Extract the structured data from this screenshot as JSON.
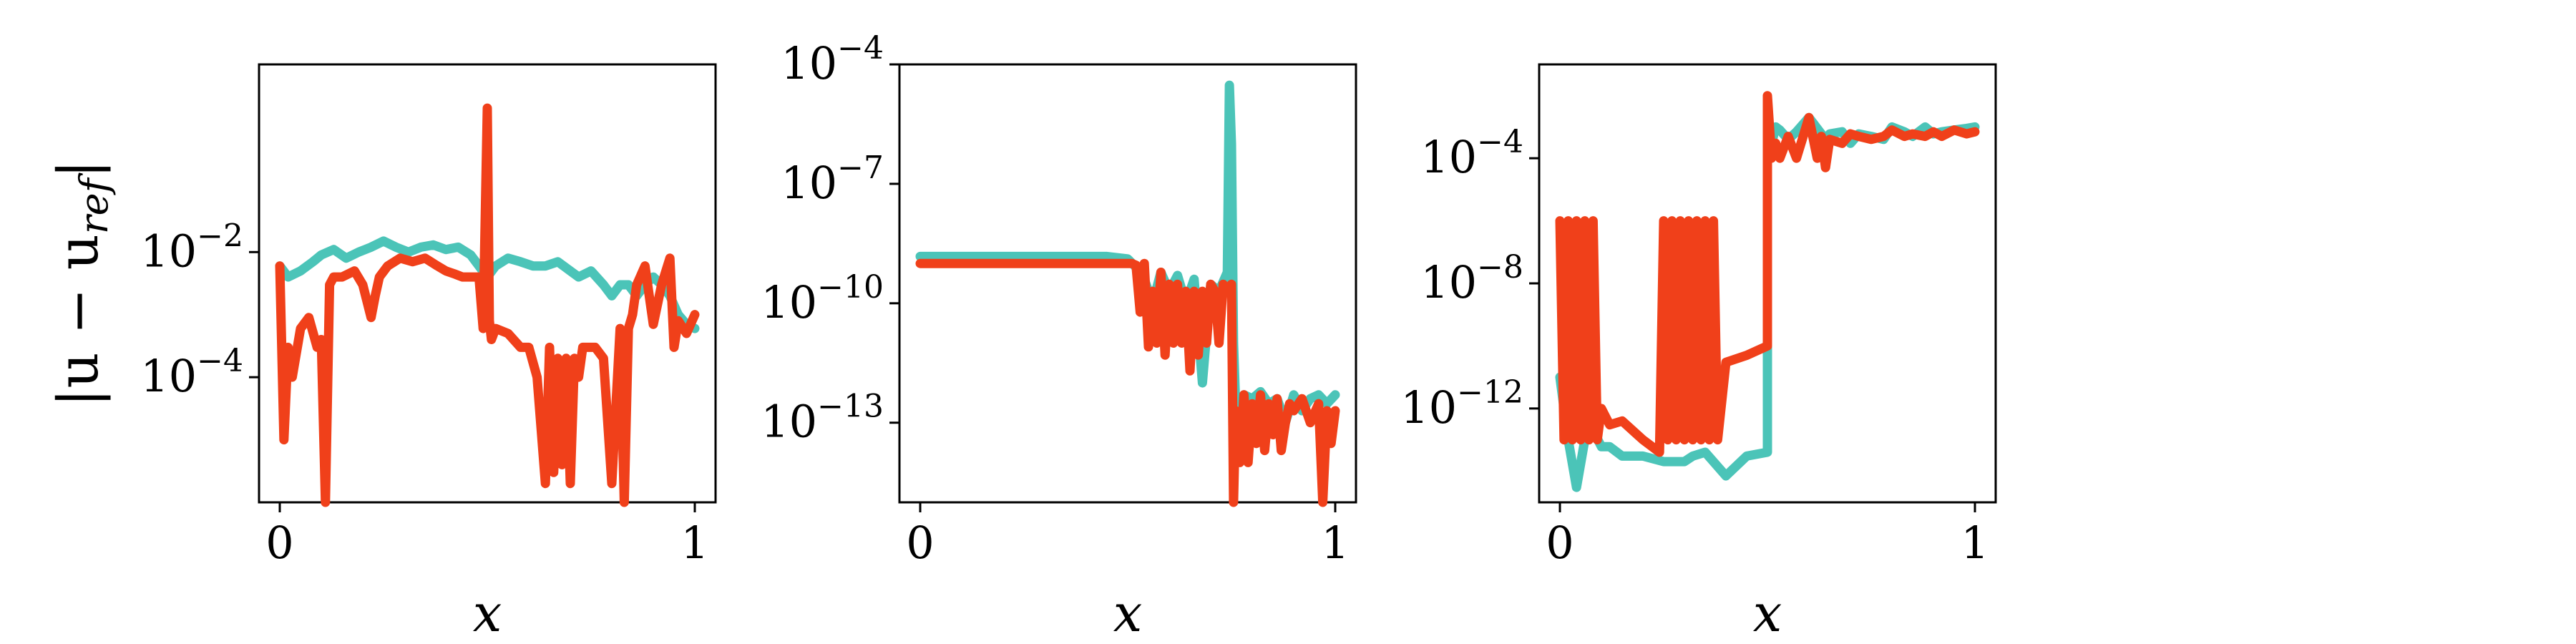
{
  "colors": {
    "series_a": "#4bc4b8",
    "series_b": "#f0401a",
    "axes": "#000000"
  },
  "chart_data": [
    {
      "type": "line",
      "log_y": true,
      "xlim": [
        -0.05,
        1.05
      ],
      "ylim": [
        1e-06,
        10
      ],
      "xticks": [
        {
          "value": 0,
          "label": "0"
        },
        {
          "value": 1,
          "label": "1"
        }
      ],
      "yticks": [
        {
          "value": 0.01,
          "base": "10",
          "exp": "−2"
        },
        {
          "value": 0.0001,
          "base": "10",
          "exp": "−4"
        }
      ],
      "xlabel": "x",
      "ylabel": "|u − u",
      "ylabel_sub": "ref",
      "ylabel_end": "|",
      "series": [
        {
          "color_key": "series_a",
          "x": [
            0,
            0.02,
            0.05,
            0.08,
            0.1,
            0.13,
            0.16,
            0.19,
            0.22,
            0.25,
            0.28,
            0.31,
            0.34,
            0.37,
            0.4,
            0.43,
            0.46,
            0.48,
            0.5,
            0.52,
            0.55,
            0.58,
            0.61,
            0.64,
            0.67,
            0.7,
            0.72,
            0.75,
            0.78,
            0.8,
            0.82,
            0.84,
            0.86,
            0.88,
            0.9,
            0.92,
            0.94,
            0.96,
            0.98,
            1.0
          ],
          "y": [
            0.006,
            0.004,
            0.005,
            0.007,
            0.009,
            0.011,
            0.008,
            0.01,
            0.012,
            0.015,
            0.012,
            0.01,
            0.012,
            0.013,
            0.011,
            0.012,
            0.009,
            0.006,
            0.004,
            0.006,
            0.008,
            0.007,
            0.006,
            0.006,
            0.007,
            0.005,
            0.004,
            0.005,
            0.003,
            0.002,
            0.003,
            0.003,
            0.002,
            0.003,
            0.004,
            0.003,
            0.002,
            0.001,
            0.0007,
            0.0006
          ]
        },
        {
          "color_key": "series_b",
          "x": [
            0,
            0.01,
            0.02,
            0.03,
            0.05,
            0.07,
            0.09,
            0.1,
            0.11,
            0.12,
            0.13,
            0.15,
            0.18,
            0.2,
            0.22,
            0.23,
            0.24,
            0.26,
            0.29,
            0.32,
            0.35,
            0.38,
            0.4,
            0.42,
            0.44,
            0.46,
            0.48,
            0.49,
            0.5,
            0.505,
            0.51,
            0.52,
            0.55,
            0.58,
            0.6,
            0.62,
            0.64,
            0.65,
            0.66,
            0.67,
            0.68,
            0.69,
            0.7,
            0.71,
            0.72,
            0.73,
            0.74,
            0.76,
            0.78,
            0.8,
            0.82,
            0.83,
            0.84,
            0.85,
            0.86,
            0.88,
            0.9,
            0.92,
            0.94,
            0.95,
            0.96,
            0.98,
            1.0
          ],
          "y": [
            0.006,
            1e-05,
            0.0003,
            0.0001,
            0.0006,
            0.0009,
            0.0003,
            0.0004,
            1e-06,
            0.003,
            0.004,
            0.004,
            0.005,
            0.003,
            0.0009,
            0.002,
            0.004,
            0.006,
            0.008,
            0.007,
            0.008,
            0.006,
            0.005,
            0.0045,
            0.004,
            0.004,
            0.004,
            0.0006,
            2,
            0.0008,
            0.0004,
            0.0006,
            0.0005,
            0.0003,
            0.0003,
            0.0001,
            2e-06,
            0.0003,
            3e-06,
            0.0002,
            4e-06,
            0.0002,
            2e-06,
            0.0002,
            0.0001,
            0.0003,
            0.0003,
            0.0003,
            0.0002,
            2e-06,
            0.0006,
            1e-06,
            0.0006,
            0.001,
            0.003,
            0.006,
            0.0007,
            0.003,
            0.008,
            0.0003,
            0.0008,
            0.0005,
            0.001
          ]
        }
      ]
    },
    {
      "type": "line",
      "log_y": true,
      "xlim": [
        -0.05,
        1.05
      ],
      "ylim": [
        1e-15,
        0.0001
      ],
      "xticks": [
        {
          "value": 0,
          "label": "0"
        },
        {
          "value": 1,
          "label": "1"
        }
      ],
      "yticks": [
        {
          "value": 0.0001,
          "base": "10",
          "exp": "−4"
        },
        {
          "value": 1e-07,
          "base": "10",
          "exp": "−7"
        },
        {
          "value": 1e-10,
          "base": "10",
          "exp": "−10"
        },
        {
          "value": 1e-13,
          "base": "10",
          "exp": "−13"
        }
      ],
      "xlabel": "x",
      "series": [
        {
          "color_key": "series_a",
          "x": [
            0,
            0.1,
            0.2,
            0.3,
            0.4,
            0.45,
            0.5,
            0.52,
            0.54,
            0.56,
            0.58,
            0.6,
            0.62,
            0.64,
            0.66,
            0.68,
            0.7,
            0.72,
            0.74,
            0.745,
            0.75,
            0.755,
            0.76,
            0.78,
            0.8,
            0.82,
            0.84,
            0.86,
            0.88,
            0.9,
            0.92,
            0.94,
            0.96,
            0.98,
            1.0
          ],
          "y": [
            1.5e-09,
            1.5e-09,
            1.5e-09,
            1.5e-09,
            1.5e-09,
            1.5e-09,
            1.3e-09,
            8e-10,
            4e-10,
            1e-10,
            6e-10,
            2e-10,
            5e-10,
            1e-10,
            4e-10,
            1e-12,
            3e-10,
            2e-10,
            6e-10,
            3e-05,
            1e-06,
            1e-11,
            3e-13,
            5e-13,
            4e-13,
            6e-13,
            3e-13,
            4e-13,
            1e-13,
            5e-13,
            2e-13,
            4e-13,
            5e-13,
            3e-13,
            5e-13
          ]
        },
        {
          "color_key": "series_b",
          "x": [
            0,
            0.1,
            0.2,
            0.3,
            0.4,
            0.45,
            0.5,
            0.51,
            0.52,
            0.53,
            0.54,
            0.55,
            0.56,
            0.57,
            0.58,
            0.59,
            0.6,
            0.61,
            0.62,
            0.63,
            0.64,
            0.65,
            0.66,
            0.67,
            0.68,
            0.69,
            0.7,
            0.71,
            0.72,
            0.73,
            0.74,
            0.75,
            0.755,
            0.76,
            0.77,
            0.78,
            0.79,
            0.8,
            0.81,
            0.82,
            0.83,
            0.84,
            0.85,
            0.86,
            0.87,
            0.88,
            0.89,
            0.9,
            0.92,
            0.94,
            0.96,
            0.97,
            0.98,
            0.99,
            1.0
          ],
          "y": [
            1e-09,
            1e-09,
            1e-09,
            1e-09,
            1e-09,
            1e-09,
            1e-09,
            1e-09,
            9e-10,
            6e-11,
            1e-09,
            8e-12,
            2e-10,
            1e-11,
            6e-10,
            5e-12,
            3e-10,
            1e-11,
            3e-10,
            1e-11,
            2e-10,
            2e-12,
            2e-10,
            5e-12,
            2e-10,
            1e-11,
            3e-10,
            2e-10,
            1e-11,
            3e-10,
            2e-10,
            3e-10,
            1e-15,
            2e-13,
            1e-14,
            5e-13,
            1e-14,
            3e-13,
            3e-14,
            5e-13,
            2e-14,
            3e-13,
            5e-14,
            4e-13,
            2e-14,
            1e-13,
            3e-13,
            2e-13,
            4e-13,
            1e-13,
            3e-13,
            1e-15,
            2e-13,
            3e-14,
            2e-13
          ]
        }
      ]
    },
    {
      "type": "line",
      "log_y": true,
      "xlim": [
        -0.05,
        1.05
      ],
      "ylim": [
        1e-15,
        0.1
      ],
      "xticks": [
        {
          "value": 0,
          "label": "0"
        },
        {
          "value": 1,
          "label": "1"
        }
      ],
      "yticks": [
        {
          "value": 0.0001,
          "base": "10",
          "exp": "−4"
        },
        {
          "value": 1e-08,
          "base": "10",
          "exp": "−8"
        },
        {
          "value": 1e-12,
          "base": "10",
          "exp": "−12"
        }
      ],
      "xlabel": "x",
      "series": [
        {
          "color_key": "series_a",
          "x": [
            0,
            0.02,
            0.04,
            0.06,
            0.08,
            0.1,
            0.12,
            0.15,
            0.2,
            0.25,
            0.3,
            0.32,
            0.35,
            0.4,
            0.45,
            0.5,
            0.5,
            0.51,
            0.52,
            0.53,
            0.55,
            0.57,
            0.6,
            0.62,
            0.64,
            0.65,
            0.68,
            0.7,
            0.72,
            0.75,
            0.78,
            0.8,
            0.83,
            0.85,
            0.88,
            0.9,
            0.92,
            0.95,
            0.98,
            1.0
          ],
          "y": [
            1e-11,
            1e-13,
            3e-15,
            1e-13,
            2e-13,
            6e-14,
            6e-14,
            3e-14,
            3e-14,
            2e-14,
            2e-14,
            3e-14,
            4e-14,
            7e-15,
            3e-14,
            4e-14,
            0.001,
            0.0003,
            0.001,
            0.0008,
            0.0004,
            0.0007,
            0.002,
            0.0009,
            0.0004,
            0.0006,
            0.0007,
            0.0003,
            0.0006,
            0.0005,
            0.0004,
            0.001,
            0.0007,
            0.0005,
            0.001,
            0.0006,
            0.0007,
            0.0008,
            0.0009,
            0.001
          ]
        },
        {
          "color_key": "series_b",
          "x": [
            0,
            0.01,
            0.02,
            0.03,
            0.04,
            0.05,
            0.06,
            0.07,
            0.08,
            0.09,
            0.1,
            0.12,
            0.15,
            0.2,
            0.24,
            0.25,
            0.26,
            0.27,
            0.28,
            0.29,
            0.3,
            0.31,
            0.32,
            0.33,
            0.34,
            0.35,
            0.36,
            0.37,
            0.38,
            0.4,
            0.45,
            0.5,
            0.5,
            0.51,
            0.52,
            0.53,
            0.55,
            0.57,
            0.6,
            0.62,
            0.63,
            0.64,
            0.65,
            0.68,
            0.7,
            0.72,
            0.75,
            0.78,
            0.8,
            0.83,
            0.85,
            0.88,
            0.9,
            0.92,
            0.95,
            0.98,
            1.0
          ],
          "y": [
            1e-06,
            1e-13,
            1e-06,
            1e-13,
            1e-06,
            1e-13,
            1e-06,
            1e-13,
            1e-06,
            1e-13,
            1e-12,
            3e-13,
            4e-13,
            1e-13,
            4e-14,
            1e-06,
            1e-13,
            1e-06,
            1e-13,
            1e-06,
            1e-13,
            1e-06,
            1e-13,
            1e-06,
            1e-13,
            1e-06,
            1e-13,
            1e-06,
            1e-13,
            3e-11,
            5e-11,
            1e-10,
            0.01,
            0.0001,
            0.0003,
            0.0001,
            0.0005,
            0.0001,
            0.002,
            0.0001,
            0.0005,
            5e-05,
            0.0004,
            0.0003,
            0.0006,
            0.0005,
            0.0004,
            0.0005,
            0.0008,
            0.0005,
            0.0006,
            0.0005,
            0.0007,
            0.0005,
            0.0008,
            0.0006,
            0.0007
          ]
        }
      ]
    }
  ]
}
